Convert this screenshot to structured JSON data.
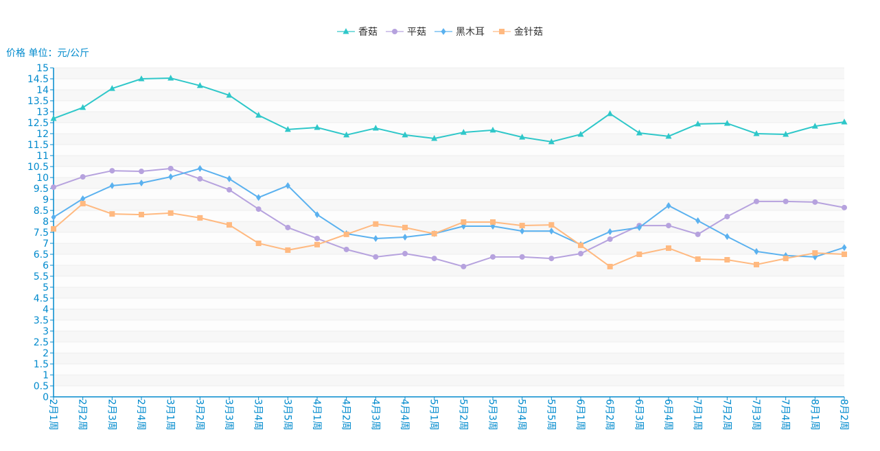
{
  "chart_data": {
    "type": "line",
    "title": "",
    "ylabel": "价格 单位：元/公斤",
    "xlabel": "",
    "ylim": [
      0,
      15
    ],
    "ytick_step": 0.5,
    "grid": true,
    "legend_position": "top-center",
    "categories": [
      "2月1周",
      "2月2周",
      "2月3周",
      "2月4周",
      "3月1周",
      "3月2周",
      "3月3周",
      "3月4周",
      "3月5周",
      "4月1周",
      "4月2周",
      "4月3周",
      "4月4周",
      "5月1周",
      "5月2周",
      "5月3周",
      "5月4周",
      "5月5周",
      "6月1周",
      "6月2周",
      "6月3周",
      "6月4周",
      "7月1周",
      "7月2周",
      "7月3周",
      "7月4周",
      "8月1周",
      "8月2周"
    ],
    "series": [
      {
        "name": "香菇",
        "color": "#2ec7c9",
        "marker": "triangle",
        "values": [
          12.69,
          13.19,
          14.06,
          14.5,
          14.53,
          14.19,
          13.75,
          12.84,
          12.19,
          12.28,
          11.94,
          12.25,
          11.94,
          11.78,
          12.06,
          12.16,
          11.84,
          11.63,
          11.97,
          12.91,
          12.03,
          11.88,
          12.44,
          12.47,
          12.0,
          11.97,
          12.34,
          12.53
        ]
      },
      {
        "name": "平菇",
        "color": "#b6a2de",
        "marker": "circle",
        "values": [
          9.56,
          10.03,
          10.31,
          10.28,
          10.41,
          9.94,
          9.44,
          8.56,
          7.72,
          7.22,
          6.72,
          6.38,
          6.53,
          6.31,
          5.94,
          6.38,
          6.38,
          6.31,
          6.53,
          7.19,
          7.81,
          7.81,
          7.41,
          8.22,
          8.91,
          8.91,
          8.88,
          8.63
        ]
      },
      {
        "name": "黑木耳",
        "color": "#5ab1ef",
        "marker": "diamond",
        "values": [
          8.19,
          9.03,
          9.63,
          9.75,
          10.03,
          10.41,
          9.94,
          9.09,
          9.63,
          8.31,
          7.44,
          7.22,
          7.28,
          7.44,
          7.78,
          7.78,
          7.56,
          7.56,
          6.94,
          7.53,
          7.72,
          8.72,
          8.03,
          7.31,
          6.63,
          6.44,
          6.38,
          6.81
        ]
      },
      {
        "name": "金针菇",
        "color": "#ffb980",
        "marker": "square",
        "values": [
          7.66,
          8.81,
          8.34,
          8.31,
          8.38,
          8.16,
          7.84,
          7.0,
          6.69,
          6.94,
          7.41,
          7.88,
          7.72,
          7.44,
          7.97,
          7.97,
          7.81,
          7.84,
          6.91,
          5.94,
          6.5,
          6.78,
          6.28,
          6.25,
          6.03,
          6.31,
          6.56,
          6.5
        ]
      }
    ],
    "axis_color": "#008acd"
  }
}
